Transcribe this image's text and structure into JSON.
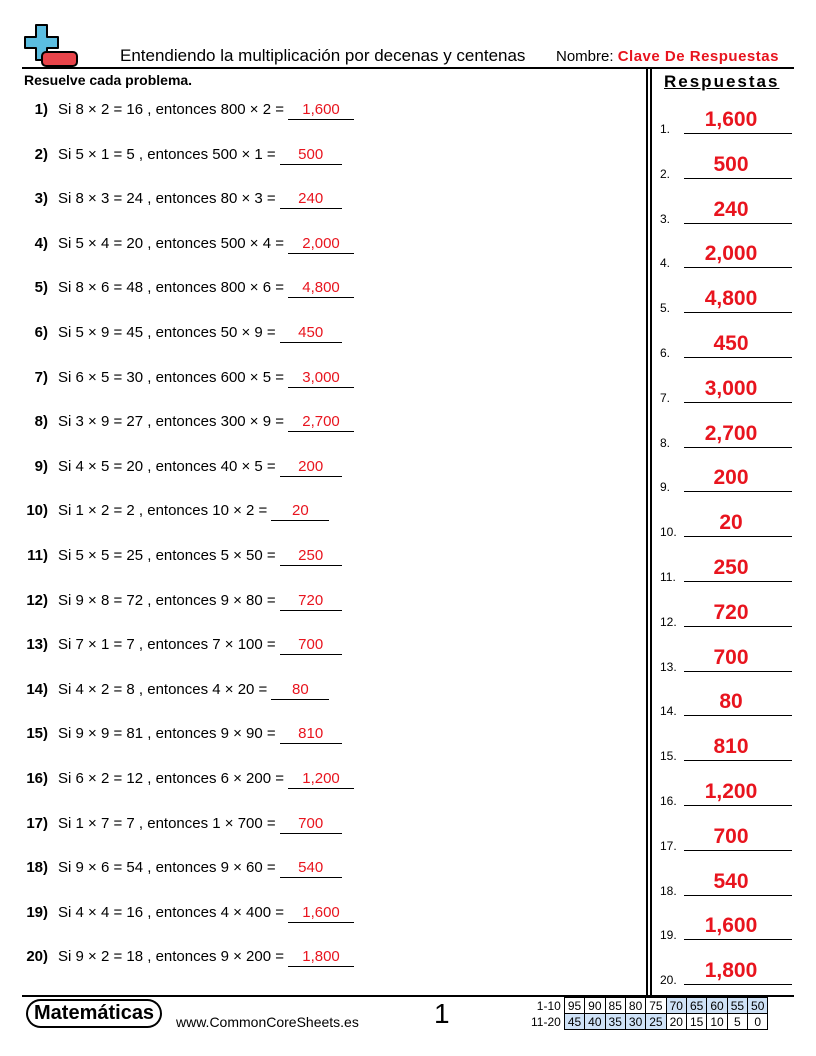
{
  "header": {
    "title": "Entendiendo la multiplicación por decenas y centenas",
    "name_label": "Nombre:",
    "name_value": "Clave De Respuestas",
    "logo_colors": {
      "plus": "#5bbde0",
      "minus": "#e8444a"
    }
  },
  "instructions": "Resuelve cada problema.",
  "answers_title": "Respuestas",
  "problems": [
    {
      "num": "1)",
      "text": "Si 8 × 2 = 16 , entonces 800 × 2 =",
      "answer": "1,600"
    },
    {
      "num": "2)",
      "text": "Si 5 × 1 = 5 , entonces 500 × 1 =",
      "answer": "500"
    },
    {
      "num": "3)",
      "text": "Si 8 × 3 = 24 , entonces 80 × 3 =",
      "answer": "240"
    },
    {
      "num": "4)",
      "text": "Si 5 × 4 = 20 , entonces 500 × 4 =",
      "answer": "2,000"
    },
    {
      "num": "5)",
      "text": "Si 8 × 6 = 48 , entonces 800 × 6 =",
      "answer": "4,800"
    },
    {
      "num": "6)",
      "text": "Si 5 × 9 = 45 , entonces 50 × 9 =",
      "answer": "450"
    },
    {
      "num": "7)",
      "text": "Si 6 × 5 = 30 , entonces 600 × 5 =",
      "answer": "3,000"
    },
    {
      "num": "8)",
      "text": "Si 3 × 9 = 27 , entonces 300 × 9 =",
      "answer": "2,700"
    },
    {
      "num": "9)",
      "text": "Si 4 × 5 = 20 , entonces 40 × 5 =",
      "answer": "200"
    },
    {
      "num": "10)",
      "text": "Si 1 × 2 = 2 , entonces 10 × 2 =",
      "answer": "20"
    },
    {
      "num": "11)",
      "text": "Si 5 × 5 = 25 , entonces 5 × 50 =",
      "answer": "250"
    },
    {
      "num": "12)",
      "text": "Si 9 × 8 = 72 , entonces 9 × 80 =",
      "answer": "720"
    },
    {
      "num": "13)",
      "text": "Si 7 × 1 = 7 , entonces 7 × 100 =",
      "answer": "700"
    },
    {
      "num": "14)",
      "text": "Si 4 × 2 = 8 , entonces 4 × 20 =",
      "answer": "80"
    },
    {
      "num": "15)",
      "text": "Si 9 × 9 = 81 , entonces 9 × 90 =",
      "answer": "810"
    },
    {
      "num": "16)",
      "text": "Si 6 × 2 = 12 , entonces 6 × 200 =",
      "answer": "1,200"
    },
    {
      "num": "17)",
      "text": "Si 1 × 7 = 7 , entonces 1 × 700 =",
      "answer": "700"
    },
    {
      "num": "18)",
      "text": "Si 9 × 6 = 54 , entonces 9 × 60 =",
      "answer": "540"
    },
    {
      "num": "19)",
      "text": "Si 4 × 4 = 16 , entonces 4 × 400 =",
      "answer": "1,600"
    },
    {
      "num": "20)",
      "text": "Si 9 × 2 = 18 , entonces 9 × 200 =",
      "answer": "1,800"
    }
  ],
  "answer_key": [
    {
      "num": "1.",
      "answer": "1,600"
    },
    {
      "num": "2.",
      "answer": "500"
    },
    {
      "num": "3.",
      "answer": "240"
    },
    {
      "num": "4.",
      "answer": "2,000"
    },
    {
      "num": "5.",
      "answer": "4,800"
    },
    {
      "num": "6.",
      "answer": "450"
    },
    {
      "num": "7.",
      "answer": "3,000"
    },
    {
      "num": "8.",
      "answer": "2,700"
    },
    {
      "num": "9.",
      "answer": "200"
    },
    {
      "num": "10.",
      "answer": "20"
    },
    {
      "num": "11.",
      "answer": "250"
    },
    {
      "num": "12.",
      "answer": "720"
    },
    {
      "num": "13.",
      "answer": "700"
    },
    {
      "num": "14.",
      "answer": "80"
    },
    {
      "num": "15.",
      "answer": "810"
    },
    {
      "num": "16.",
      "answer": "1,200"
    },
    {
      "num": "17.",
      "answer": "700"
    },
    {
      "num": "18.",
      "answer": "540"
    },
    {
      "num": "19.",
      "answer": "1,600"
    },
    {
      "num": "20.",
      "answer": "1,800"
    }
  ],
  "footer": {
    "brand": "Matemáticas",
    "site": "www.CommonCoreSheets.es",
    "page": "1",
    "score_rows": [
      {
        "label": "1-10",
        "values": [
          "95",
          "90",
          "85",
          "80",
          "75",
          "70",
          "65",
          "60",
          "55",
          "50"
        ]
      },
      {
        "label": "11-20",
        "values": [
          "45",
          "40",
          "35",
          "30",
          "25",
          "20",
          "15",
          "10",
          "5",
          "0"
        ]
      }
    ],
    "highlight_color": "#cfe2f7"
  }
}
